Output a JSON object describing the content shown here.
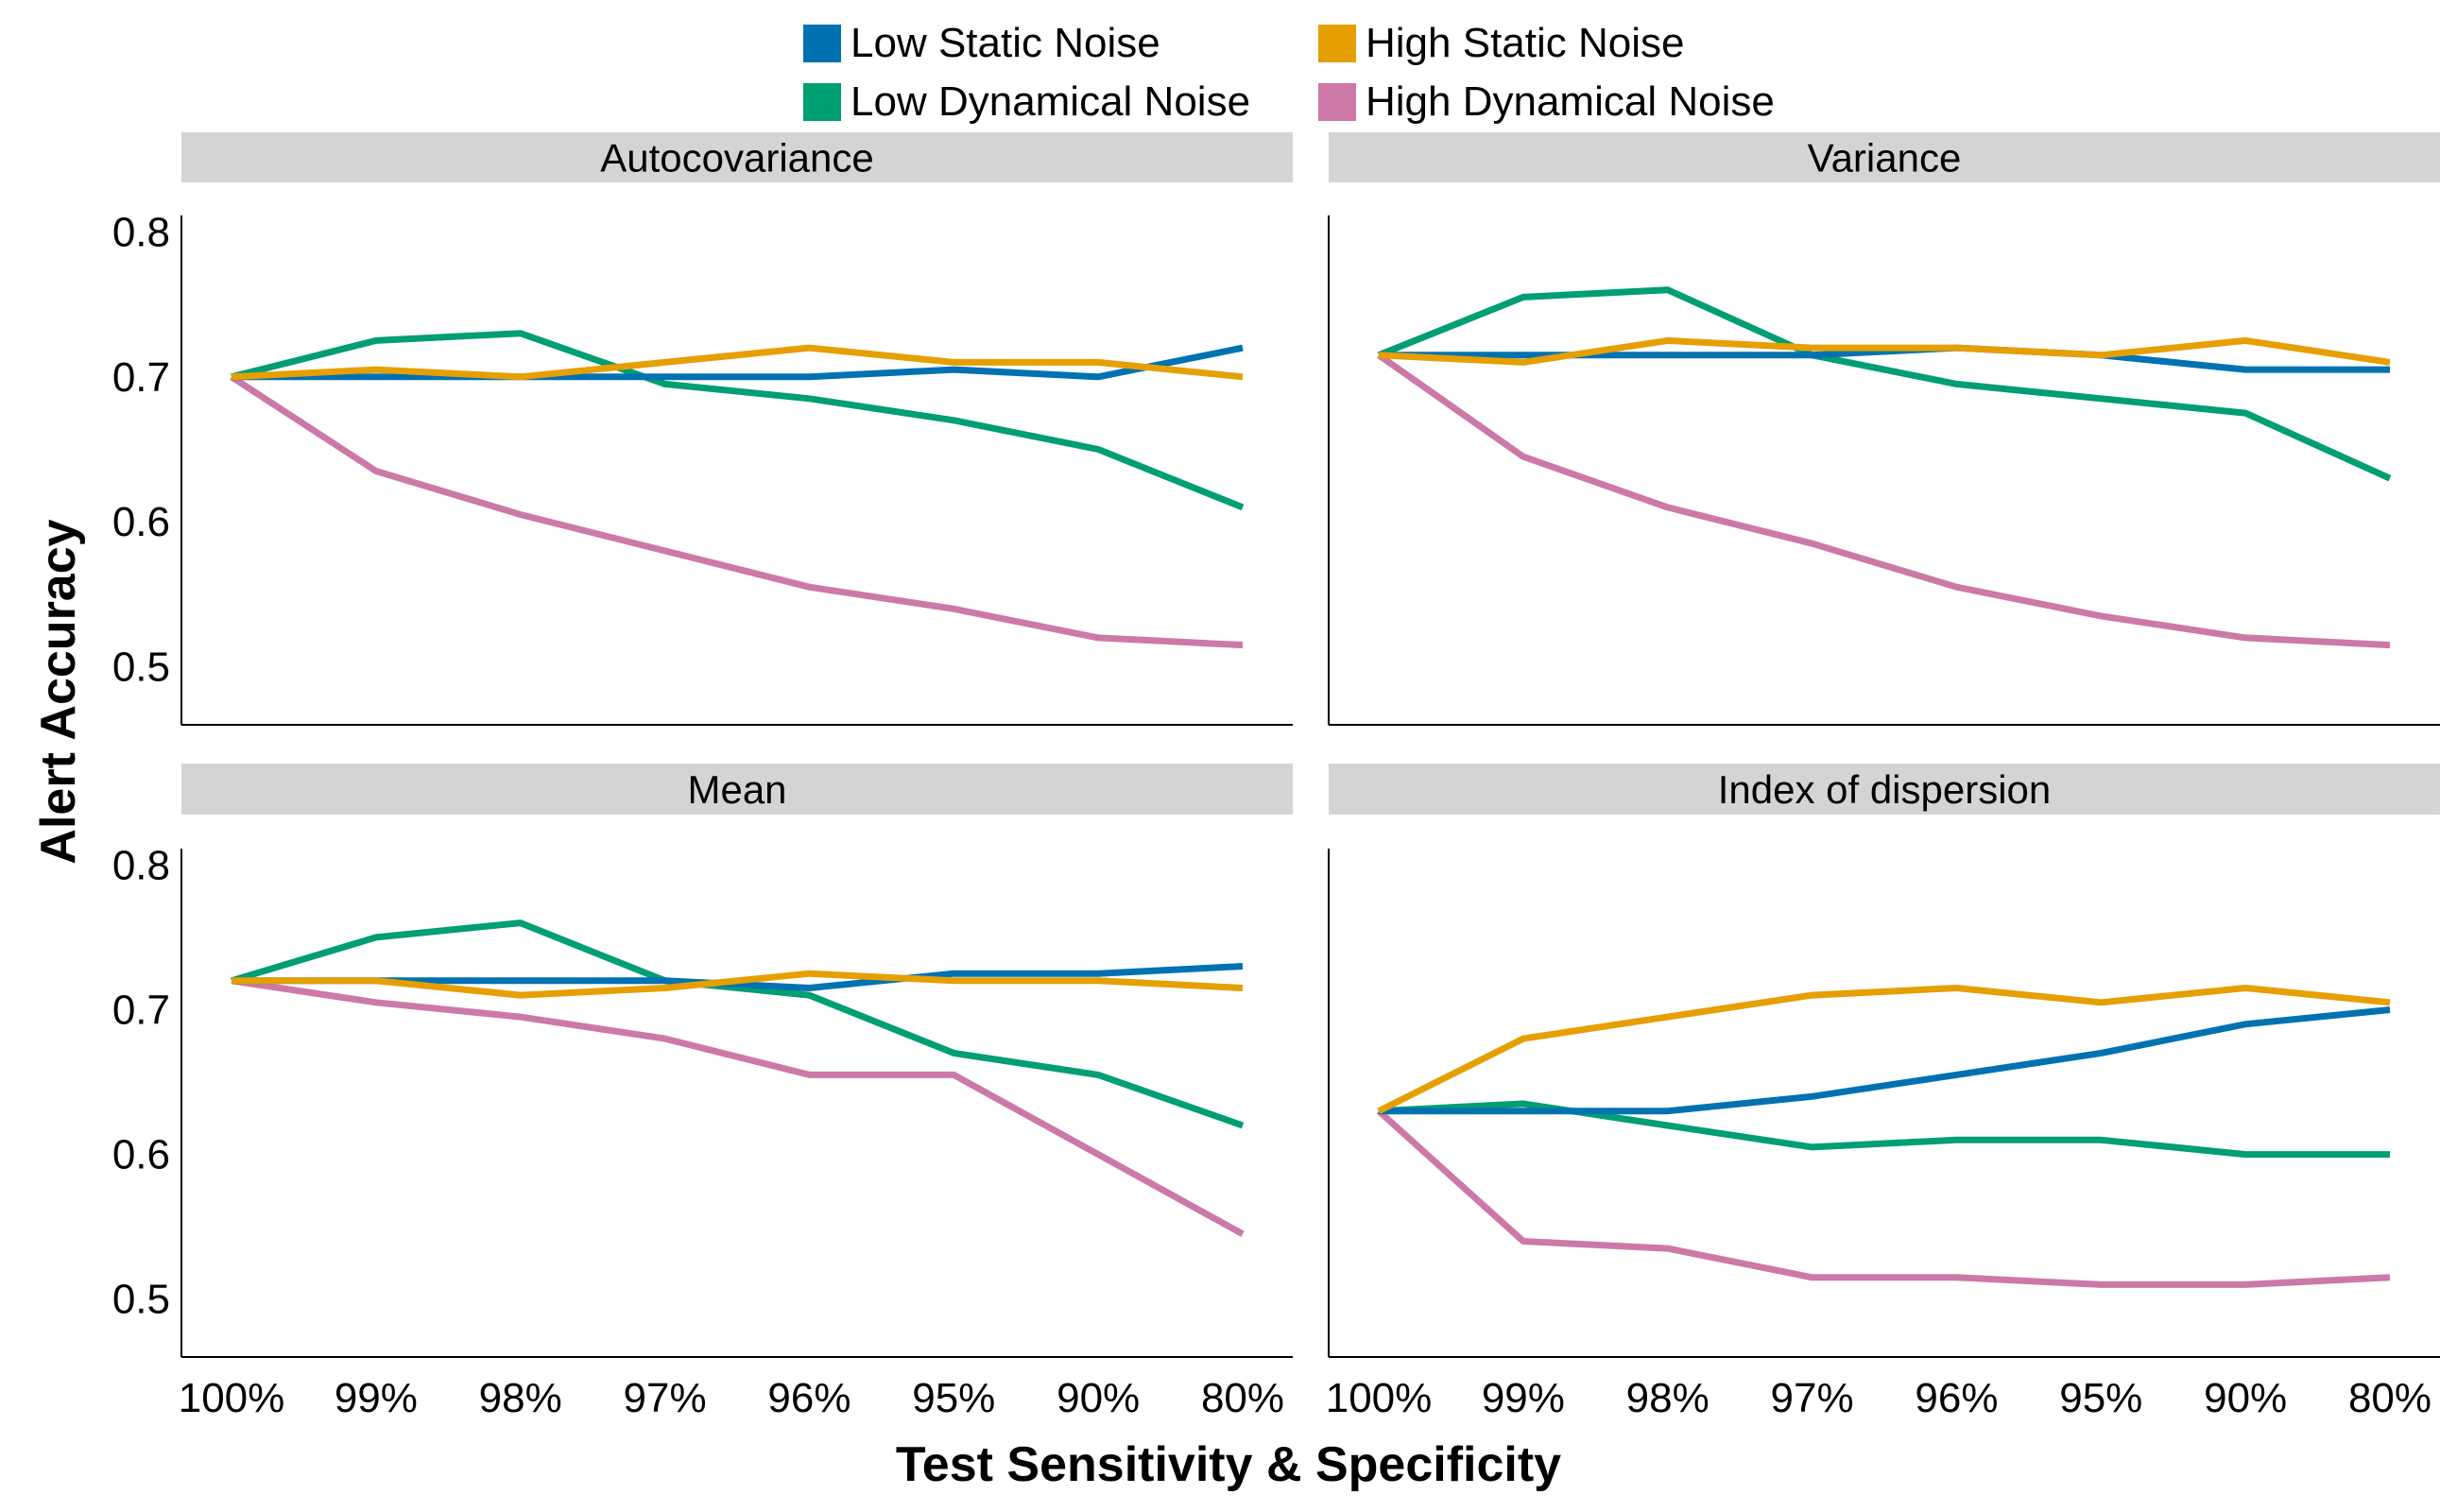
{
  "chart_data": {
    "type": "line",
    "xlabel": "Test Sensitivity & Specificity",
    "ylabel": "Alert Accuracy",
    "categories": [
      "100%",
      "99%",
      "98%",
      "97%",
      "96%",
      "95%",
      "90%",
      "80%"
    ],
    "ylim": [
      0.46,
      0.81
    ],
    "yticks": [
      0.5,
      0.6,
      0.7,
      0.8
    ],
    "grid": false,
    "legend_position": "top",
    "legend": [
      {
        "name": "Low Static Noise",
        "color": "#0072B2"
      },
      {
        "name": "High Static Noise",
        "color": "#E69F00"
      },
      {
        "name": "Low Dynamical Noise",
        "color": "#009E73"
      },
      {
        "name": "High Dynamical Noise",
        "color": "#CC79A7"
      }
    ],
    "panels": [
      {
        "title": "Autocovariance",
        "series": [
          {
            "name": "Low Static Noise",
            "values": [
              0.7,
              0.7,
              0.7,
              0.7,
              0.7,
              0.705,
              0.7,
              0.72
            ]
          },
          {
            "name": "High Static Noise",
            "values": [
              0.7,
              0.705,
              0.7,
              0.71,
              0.72,
              0.71,
              0.71,
              0.7
            ]
          },
          {
            "name": "Low Dynamical Noise",
            "values": [
              0.7,
              0.725,
              0.73,
              0.695,
              0.685,
              0.67,
              0.65,
              0.61
            ]
          },
          {
            "name": "High Dynamical Noise",
            "values": [
              0.7,
              0.635,
              0.605,
              0.58,
              0.555,
              0.54,
              0.52,
              0.515
            ]
          }
        ]
      },
      {
        "title": "Variance",
        "series": [
          {
            "name": "Low Static Noise",
            "values": [
              0.715,
              0.715,
              0.715,
              0.715,
              0.72,
              0.715,
              0.705,
              0.705
            ]
          },
          {
            "name": "High Static Noise",
            "values": [
              0.715,
              0.71,
              0.725,
              0.72,
              0.72,
              0.715,
              0.725,
              0.71
            ]
          },
          {
            "name": "Low Dynamical Noise",
            "values": [
              0.715,
              0.755,
              0.76,
              0.715,
              0.695,
              0.685,
              0.675,
              0.63
            ]
          },
          {
            "name": "High Dynamical Noise",
            "values": [
              0.715,
              0.645,
              0.61,
              0.585,
              0.555,
              0.535,
              0.52,
              0.515
            ]
          }
        ]
      },
      {
        "title": "Mean",
        "series": [
          {
            "name": "Low Static Noise",
            "values": [
              0.72,
              0.72,
              0.72,
              0.72,
              0.715,
              0.725,
              0.725,
              0.73
            ]
          },
          {
            "name": "High Static Noise",
            "values": [
              0.72,
              0.72,
              0.71,
              0.715,
              0.725,
              0.72,
              0.72,
              0.715
            ]
          },
          {
            "name": "Low Dynamical Noise",
            "values": [
              0.72,
              0.75,
              0.76,
              0.72,
              0.71,
              0.67,
              0.655,
              0.62
            ]
          },
          {
            "name": "High Dynamical Noise",
            "values": [
              0.72,
              0.705,
              0.695,
              0.68,
              0.655,
              0.655,
              0.6,
              0.545
            ]
          }
        ]
      },
      {
        "title": "Index of dispersion",
        "series": [
          {
            "name": "Low Static Noise",
            "values": [
              0.63,
              0.63,
              0.63,
              0.64,
              0.655,
              0.67,
              0.69,
              0.7
            ]
          },
          {
            "name": "High Static Noise",
            "values": [
              0.63,
              0.68,
              0.695,
              0.71,
              0.715,
              0.705,
              0.715,
              0.705
            ]
          },
          {
            "name": "Low Dynamical Noise",
            "values": [
              0.63,
              0.635,
              0.62,
              0.605,
              0.61,
              0.61,
              0.6,
              0.6
            ]
          },
          {
            "name": "High Dynamical Noise",
            "values": [
              0.63,
              0.54,
              0.535,
              0.515,
              0.515,
              0.51,
              0.51,
              0.515
            ]
          }
        ]
      }
    ]
  }
}
